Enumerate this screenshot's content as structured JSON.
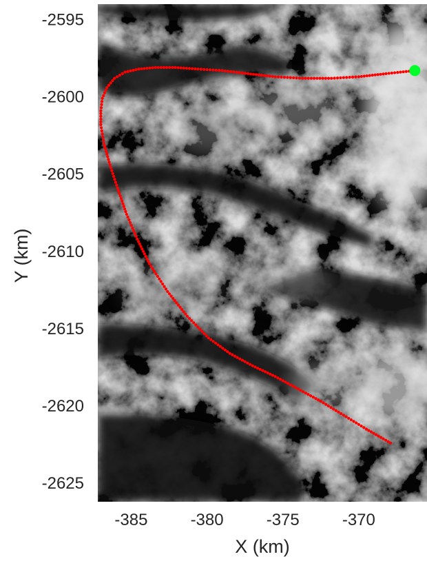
{
  "chart_data": {
    "type": "scatter",
    "title": "",
    "xlabel": "X (km)",
    "ylabel": "Y (km)",
    "xlim": [
      -387.2,
      -365.5
    ],
    "ylim": [
      -2626.2,
      -2594.0
    ],
    "xticks": [
      -385,
      -380,
      -375,
      -370
    ],
    "yticks": [
      -2595,
      -2600,
      -2605,
      -2610,
      -2615,
      -2620,
      -2625
    ],
    "xtick_labels": [
      "-385",
      "-380",
      "-375",
      "-370"
    ],
    "ytick_labels": [
      "-2595",
      "-2600",
      "-2605",
      "-2610",
      "-2615",
      "-2620",
      "-2625"
    ],
    "grid": false,
    "background": "grayscale satellite imagery of glaciated mountains and fjords",
    "series": [
      {
        "marker_color": "#ff0000",
        "marker": "dot",
        "x": [
          -367.9,
          -369.5,
          -371.0,
          -372.5,
          -374.0,
          -375.5,
          -377.0,
          -378.5,
          -379.9,
          -381.3,
          -382.6,
          -383.8,
          -384.6,
          -385.3,
          -385.9,
          -386.4,
          -386.8,
          -387.0,
          -387.0,
          -386.9,
          -386.6,
          -386.1,
          -385.4,
          -384.5,
          -383.4,
          -382.1,
          -380.6,
          -379.0,
          -377.3,
          -375.5,
          -373.7,
          -371.8,
          -370.0,
          -368.2,
          -366.3
        ],
        "y": [
          -2622.4,
          -2621.5,
          -2620.6,
          -2619.7,
          -2618.9,
          -2618.1,
          -2617.4,
          -2616.6,
          -2615.6,
          -2614.2,
          -2612.6,
          -2610.8,
          -2609.2,
          -2607.6,
          -2605.9,
          -2604.4,
          -2603.0,
          -2601.8,
          -2600.9,
          -2600.1,
          -2599.4,
          -2598.8,
          -2598.4,
          -2598.2,
          -2598.1,
          -2598.1,
          -2598.2,
          -2598.3,
          -2598.5,
          -2598.7,
          -2598.8,
          -2598.8,
          -2598.7,
          -2598.5,
          -2598.3
        ]
      },
      {
        "marker_color": "#00ff2a",
        "marker": "large-dot",
        "x": [
          -366.3
        ],
        "y": [
          -2598.3
        ]
      }
    ]
  }
}
